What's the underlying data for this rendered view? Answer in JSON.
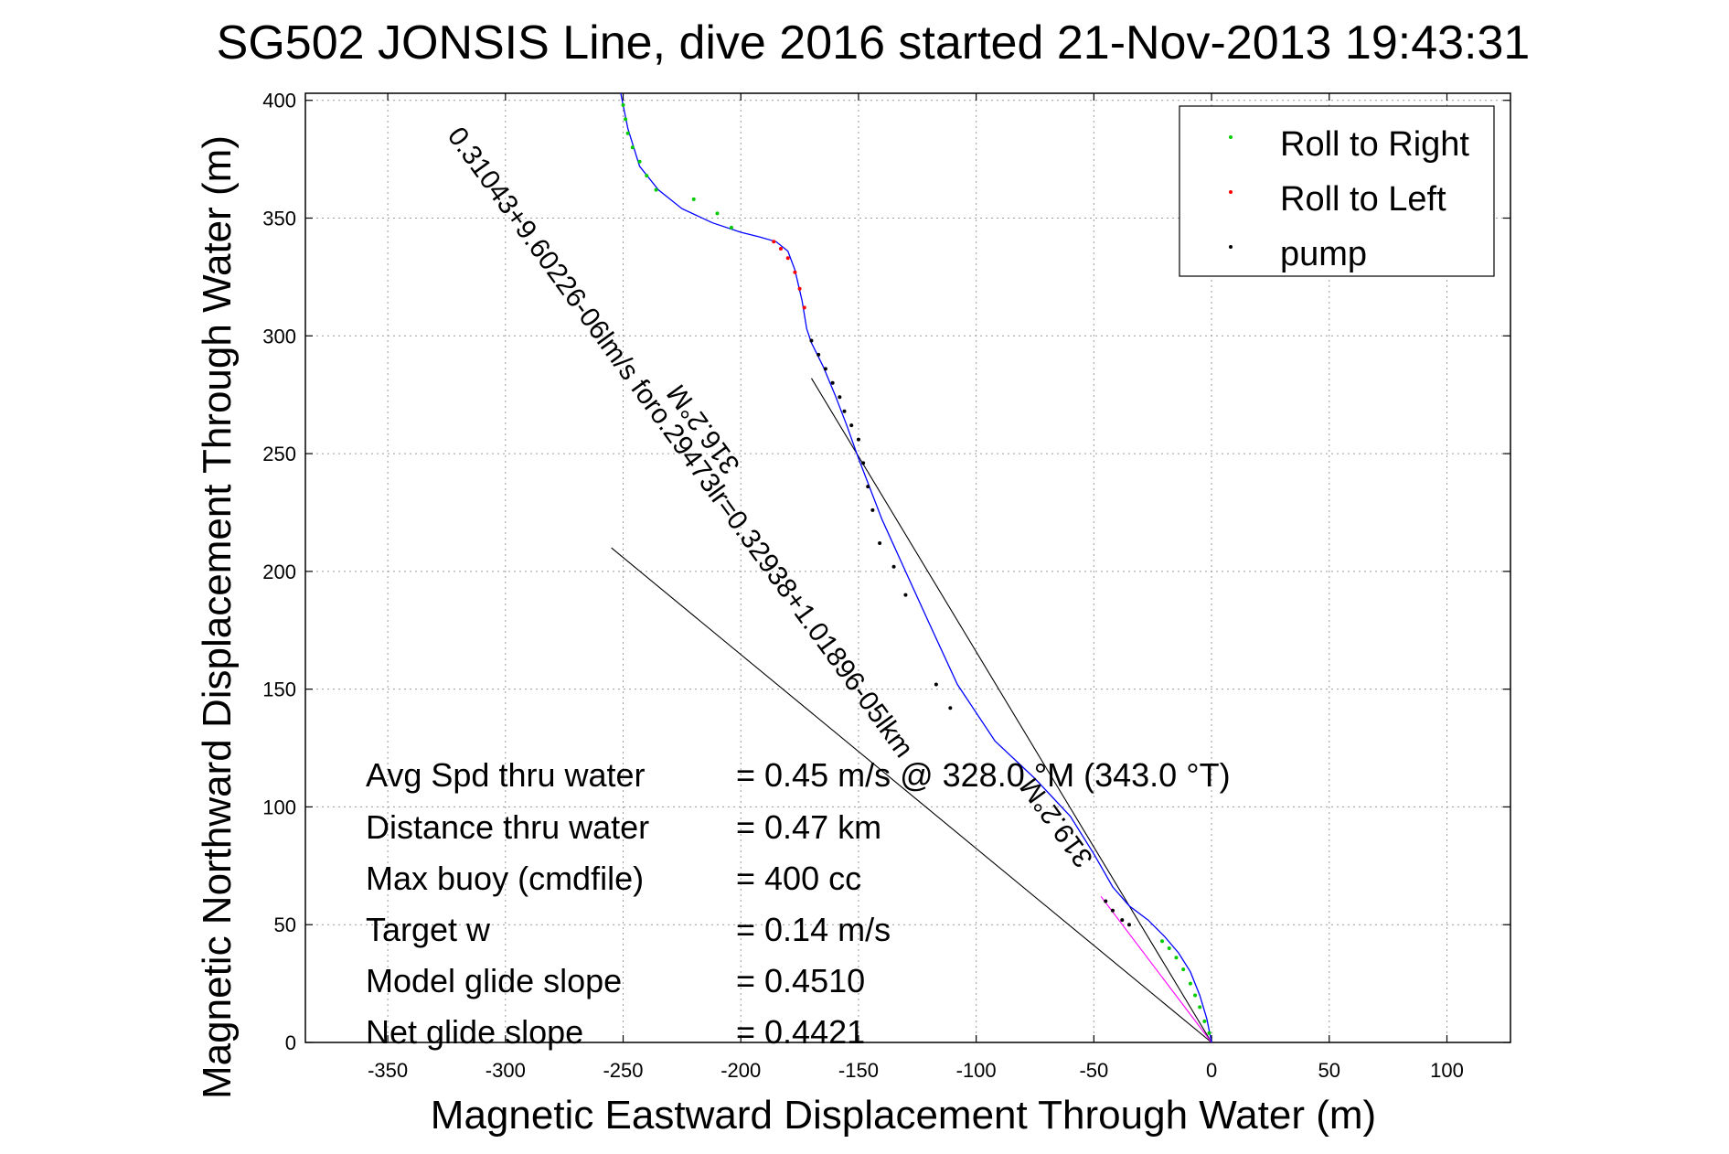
{
  "chart_data": {
    "type": "line",
    "title": "SG502 JONSIS Line, dive 2016 started 21-Nov-2013 19:43:31",
    "xlabel": "Magnetic Eastward Displacement Through Water (m)",
    "ylabel": "Magnetic Northward Displacement Through Water (m)",
    "xlim": [
      -385,
      127
    ],
    "ylim": [
      0,
      403
    ],
    "xticks": [
      -350,
      -300,
      -250,
      -200,
      -150,
      -100,
      -50,
      0,
      50,
      100
    ],
    "yticks": [
      0,
      50,
      100,
      150,
      200,
      250,
      300,
      350,
      400
    ],
    "grid": true,
    "legend_position": "top-right",
    "legend": [
      {
        "label": "Roll to Right",
        "color": "#00cc00"
      },
      {
        "label": "Roll to Left",
        "color": "#ff0000"
      },
      {
        "label": "pump",
        "color": "#000000"
      }
    ],
    "track": {
      "color": "#0000ff",
      "x": [
        0,
        -2,
        -5,
        -9,
        -14,
        -20,
        -27,
        -35,
        -42,
        -50,
        -60,
        -75,
        -92,
        -108,
        -120,
        -130,
        -140,
        -150,
        -155,
        -160,
        -165,
        -170,
        -172,
        -174,
        -177,
        -180,
        -185,
        -192,
        -200,
        -212,
        -225,
        -235,
        -243,
        -248,
        -251
      ],
      "y": [
        0,
        10,
        20,
        30,
        38,
        45,
        52,
        58,
        66,
        80,
        96,
        112,
        128,
        152,
        178,
        200,
        222,
        248,
        262,
        275,
        287,
        297,
        303,
        315,
        328,
        336,
        340,
        342,
        344,
        348,
        354,
        362,
        372,
        388,
        403
      ]
    },
    "roll_right_points": {
      "x": [
        -1,
        -3,
        -5,
        -7,
        -9,
        -12,
        -15,
        -18,
        -21,
        -236,
        -240,
        -243,
        -246,
        -248,
        -249,
        -250,
        -220,
        -210,
        -204
      ],
      "y": [
        4,
        9,
        15,
        20,
        25,
        31,
        36,
        40,
        43,
        362,
        368,
        374,
        380,
        386,
        392,
        398,
        358,
        352,
        346
      ]
    },
    "roll_left_points": {
      "x": [
        -186,
        -183,
        -180,
        -177,
        -175,
        -173
      ],
      "y": [
        340,
        337,
        333,
        327,
        320,
        312
      ]
    },
    "pump_points": {
      "x": [
        -170,
        -167,
        -164,
        -161,
        -158,
        -156,
        -153,
        -150,
        -148,
        -146,
        -144,
        -141,
        -135,
        -130,
        -117,
        -111,
        -45,
        -42,
        -38,
        -35
      ],
      "y": [
        298,
        292,
        286,
        280,
        274,
        268,
        262,
        256,
        246,
        236,
        226,
        212,
        202,
        190,
        152,
        142,
        60,
        56,
        52,
        50
      ]
    },
    "reference_lines": [
      {
        "x": [
          0,
          -170
        ],
        "y": [
          0,
          282
        ],
        "color": "#000000"
      },
      {
        "x": [
          0,
          -255
        ],
        "y": [
          0,
          210
        ],
        "color": "#000000"
      },
      {
        "x": [
          0,
          -47
        ],
        "y": [
          0,
          62
        ],
        "color": "#ff00ff"
      }
    ],
    "annotations": [
      {
        "text": "0.31043+9.60226-06lm/s foro.29473lr=0.32938+1.01896-05lkm",
        "x": -325,
        "y": 385,
        "angle": 54
      },
      {
        "text": "316.2°M",
        "x": -200,
        "y": 245,
        "angle": 234
      },
      {
        "text": "319.2°M",
        "x": -50,
        "y": 78,
        "angle": 234
      }
    ]
  },
  "stats": [
    {
      "label": "Avg Spd thru water",
      "value": "=  0.45 m/s @ 328.0 °M (343.0 °T)"
    },
    {
      "label": "Distance thru water",
      "value": "=  0.47 km"
    },
    {
      "label": "Max buoy (cmdfile)",
      "value": "= 400 cc"
    },
    {
      "label": "Target w",
      "value": "= 0.14 m/s"
    },
    {
      "label": "Model glide slope",
      "value": "= 0.4510"
    },
    {
      "label": "Net glide slope",
      "value": "= 0.4421"
    }
  ]
}
